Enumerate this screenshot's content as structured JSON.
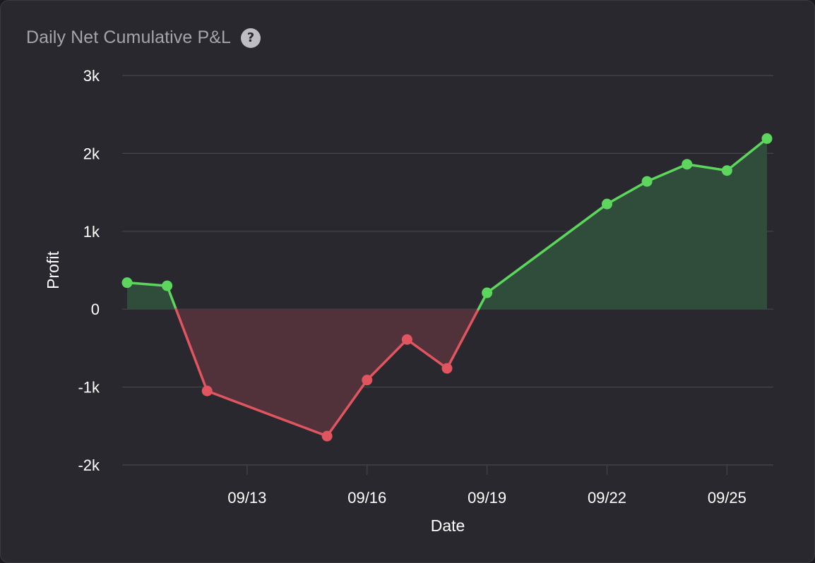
{
  "header": {
    "title": "Daily Net Cumulative P&L",
    "help_icon": "question-circle-icon"
  },
  "colors": {
    "positive": "#5cd65c",
    "negative": "#e0555f",
    "positive_fill": "#2f4d3a",
    "negative_fill": "#51323a",
    "grid": "#45444b",
    "background": "#29282e"
  },
  "chart_data": {
    "type": "area",
    "title": "Daily Net Cumulative P&L",
    "xlabel": "Date",
    "ylabel": "Profit",
    "ylim": [
      -2000,
      3000
    ],
    "yticks": [
      {
        "value": 3000,
        "label": "3k"
      },
      {
        "value": 2000,
        "label": "2k"
      },
      {
        "value": 1000,
        "label": "1k"
      },
      {
        "value": 0,
        "label": "0"
      },
      {
        "value": -1000,
        "label": "-1k"
      },
      {
        "value": -2000,
        "label": "-2k"
      }
    ],
    "xlim": [
      "2023-09-10",
      "2023-09-28"
    ],
    "xticks": [
      {
        "value": "2023-09-13",
        "label": "09/13"
      },
      {
        "value": "2023-09-16",
        "label": "09/16"
      },
      {
        "value": "2023-09-19",
        "label": "09/19"
      },
      {
        "value": "2023-09-22",
        "label": "09/22"
      },
      {
        "value": "2023-09-25",
        "label": "09/25"
      }
    ],
    "grid": true,
    "points": [
      {
        "x": "2023-09-10",
        "y": 340
      },
      {
        "x": "2023-09-11",
        "y": 300
      },
      {
        "x": "2023-09-12",
        "y": -1050
      },
      {
        "x": "2023-09-15",
        "y": -1630
      },
      {
        "x": "2023-09-16",
        "y": -910
      },
      {
        "x": "2023-09-17",
        "y": -390
      },
      {
        "x": "2023-09-18",
        "y": -760
      },
      {
        "x": "2023-09-19",
        "y": 210
      },
      {
        "x": "2023-09-22",
        "y": 1350
      },
      {
        "x": "2023-09-23",
        "y": 1640
      },
      {
        "x": "2023-09-24",
        "y": 1860
      },
      {
        "x": "2023-09-25",
        "y": 1780
      },
      {
        "x": "2023-09-26",
        "y": 2190
      }
    ]
  }
}
